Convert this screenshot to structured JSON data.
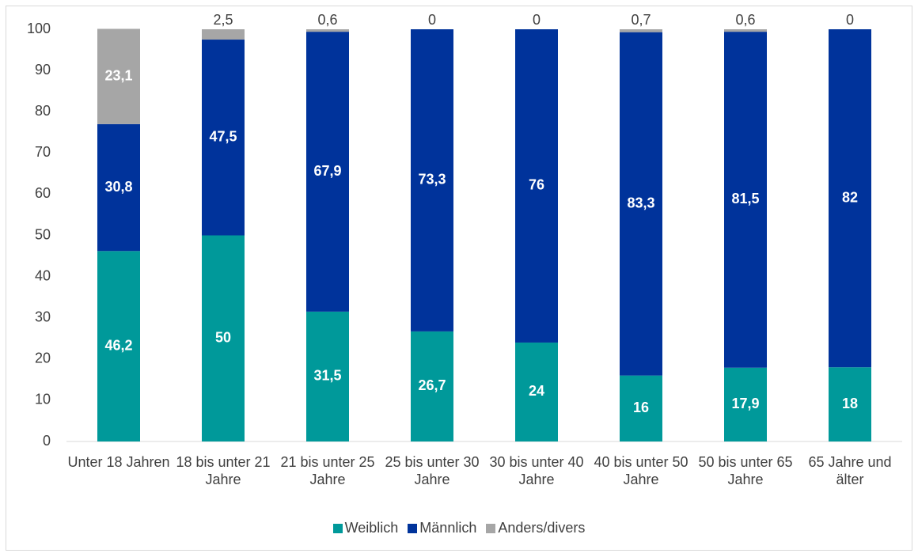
{
  "chart_data": {
    "type": "stacked_bar",
    "categories": [
      "Unter 18 Jahren",
      "18 bis unter 21 Jahre",
      "21 bis unter 25 Jahre",
      "25 bis unter 30 Jahre",
      "30 bis unter 40 Jahre",
      "40 bis unter 50 Jahre",
      "50 bis unter 65 Jahre",
      "65 Jahre und älter"
    ],
    "series": [
      {
        "name": "Weiblich",
        "color": "#00999a",
        "values": [
          46.2,
          50,
          31.5,
          26.7,
          24,
          16,
          17.9,
          18
        ],
        "value_labels": [
          "46,2",
          "50",
          "31,5",
          "26,7",
          "24",
          "16",
          "17,9",
          "18"
        ]
      },
      {
        "name": "Männlich",
        "color": "#00339b",
        "values": [
          30.8,
          47.5,
          67.9,
          73.3,
          76,
          83.3,
          81.5,
          82
        ],
        "value_labels": [
          "30,8",
          "47,5",
          "67,9",
          "73,3",
          "76",
          "83,3",
          "81,5",
          "82"
        ]
      },
      {
        "name": "Anders/divers",
        "color": "#a6a6a6",
        "values": [
          23.1,
          2.5,
          0.6,
          0,
          0,
          0.7,
          0.6,
          0
        ],
        "value_labels": [
          "23,1",
          "2,5",
          "0,6",
          "0",
          "0",
          "0,7",
          "0,6",
          "0"
        ]
      }
    ],
    "ylim": [
      0,
      100
    ],
    "yticks": [
      0,
      10,
      20,
      30,
      40,
      50,
      60,
      70,
      80,
      90,
      100
    ],
    "grid": false,
    "legend": "bottom"
  }
}
